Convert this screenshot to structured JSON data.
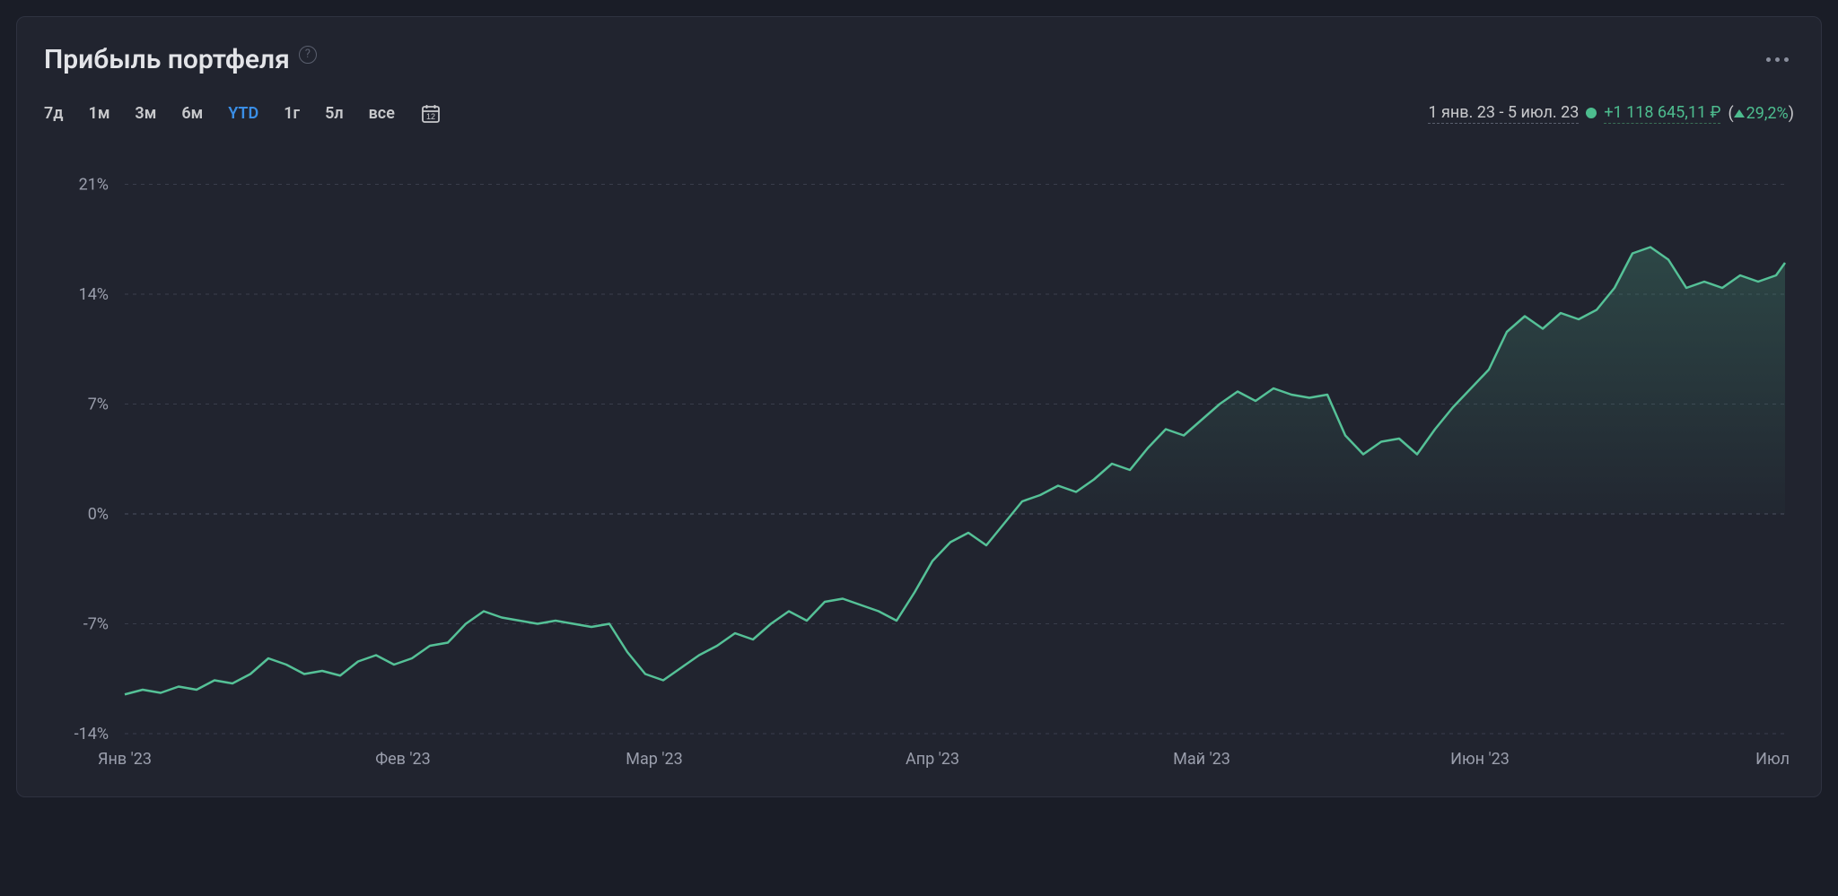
{
  "title": "Прибыль портфеля",
  "help_tooltip": "?",
  "ranges": [
    {
      "label": "7д",
      "active": false
    },
    {
      "label": "1м",
      "active": false
    },
    {
      "label": "3м",
      "active": false
    },
    {
      "label": "6м",
      "active": false
    },
    {
      "label": "YTD",
      "active": true
    },
    {
      "label": "1г",
      "active": false
    },
    {
      "label": "5л",
      "active": false
    },
    {
      "label": "все",
      "active": false
    }
  ],
  "calendar_day_label": "12",
  "summary": {
    "date_range": "1 янв. 23 - 5 июл. 23",
    "dot_color": "#4dbd8f",
    "value_text": "+1 118 645,11 ₽",
    "pct_text": "29,2%",
    "paren_open": "(",
    "paren_close": ")"
  },
  "colors": {
    "card_bg": "#21242f",
    "page_bg": "#1a1d27",
    "text_primary": "#e3e4e8",
    "text_secondary": "#c8c9cc",
    "text_muted": "#9a9eac",
    "accent_blue": "#3a8ee6",
    "positive": "#4dbd8f",
    "grid": "#3a3e4c",
    "grid_zero": "#4c5060",
    "line": "#55c197",
    "area_top": "rgba(85,193,151,0.22)",
    "area_bottom": "rgba(85,193,151,0.02)"
  },
  "chart": {
    "type": "area",
    "y_axis": {
      "min": -14,
      "max": 22,
      "ticks": [
        -14,
        -7,
        0,
        7,
        14,
        21
      ],
      "tick_labels": [
        "-14%",
        "-7%",
        "0%",
        "7%",
        "14%",
        "21%"
      ],
      "label_fontsize": 18
    },
    "x_axis": {
      "ticks": [
        0,
        31,
        59,
        90,
        120,
        151,
        181
      ],
      "tick_labels": [
        "Янв '23",
        "Фев '23",
        "Мар '23",
        "Апр '23",
        "Май '23",
        "Июн '23",
        "Июл '23"
      ],
      "min": 0,
      "max": 185,
      "label_fontsize": 18
    },
    "line_width": 2.5,
    "line_color": "#55c197",
    "fill_gradient": [
      "rgba(85,193,151,0.22)",
      "rgba(85,193,151,0.02)"
    ],
    "grid_color": "#3a3e4c",
    "data": [
      [
        0,
        -11.5
      ],
      [
        2,
        -11.2
      ],
      [
        4,
        -11.4
      ],
      [
        6,
        -11.0
      ],
      [
        8,
        -11.2
      ],
      [
        10,
        -10.6
      ],
      [
        12,
        -10.8
      ],
      [
        14,
        -10.2
      ],
      [
        16,
        -9.2
      ],
      [
        18,
        -9.6
      ],
      [
        20,
        -10.2
      ],
      [
        22,
        -10.0
      ],
      [
        24,
        -10.3
      ],
      [
        26,
        -9.4
      ],
      [
        28,
        -9.0
      ],
      [
        30,
        -9.6
      ],
      [
        32,
        -9.2
      ],
      [
        34,
        -8.4
      ],
      [
        36,
        -8.2
      ],
      [
        38,
        -7.0
      ],
      [
        40,
        -6.2
      ],
      [
        42,
        -6.6
      ],
      [
        44,
        -6.8
      ],
      [
        46,
        -7.0
      ],
      [
        48,
        -6.8
      ],
      [
        50,
        -7.0
      ],
      [
        52,
        -7.2
      ],
      [
        54,
        -7.0
      ],
      [
        56,
        -8.8
      ],
      [
        58,
        -10.2
      ],
      [
        60,
        -10.6
      ],
      [
        62,
        -9.8
      ],
      [
        64,
        -9.0
      ],
      [
        66,
        -8.4
      ],
      [
        68,
        -7.6
      ],
      [
        70,
        -8.0
      ],
      [
        72,
        -7.0
      ],
      [
        74,
        -6.2
      ],
      [
        76,
        -6.8
      ],
      [
        78,
        -5.6
      ],
      [
        80,
        -5.4
      ],
      [
        82,
        -5.8
      ],
      [
        84,
        -6.2
      ],
      [
        86,
        -6.8
      ],
      [
        88,
        -5.0
      ],
      [
        90,
        -3.0
      ],
      [
        92,
        -1.8
      ],
      [
        94,
        -1.2
      ],
      [
        96,
        -2.0
      ],
      [
        98,
        -0.6
      ],
      [
        100,
        0.8
      ],
      [
        102,
        1.2
      ],
      [
        104,
        1.8
      ],
      [
        106,
        1.4
      ],
      [
        108,
        2.2
      ],
      [
        110,
        3.2
      ],
      [
        112,
        2.8
      ],
      [
        114,
        4.2
      ],
      [
        116,
        5.4
      ],
      [
        118,
        5.0
      ],
      [
        120,
        6.0
      ],
      [
        122,
        7.0
      ],
      [
        124,
        7.8
      ],
      [
        126,
        7.2
      ],
      [
        128,
        8.0
      ],
      [
        130,
        7.6
      ],
      [
        132,
        7.4
      ],
      [
        134,
        7.6
      ],
      [
        136,
        5.0
      ],
      [
        138,
        3.8
      ],
      [
        140,
        4.6
      ],
      [
        142,
        4.8
      ],
      [
        144,
        3.8
      ],
      [
        146,
        5.4
      ],
      [
        148,
        6.8
      ],
      [
        150,
        8.0
      ],
      [
        152,
        9.2
      ],
      [
        154,
        11.6
      ],
      [
        156,
        12.6
      ],
      [
        158,
        11.8
      ],
      [
        160,
        12.8
      ],
      [
        162,
        12.4
      ],
      [
        164,
        13.0
      ],
      [
        166,
        14.4
      ],
      [
        168,
        16.6
      ],
      [
        170,
        17.0
      ],
      [
        172,
        16.2
      ],
      [
        174,
        14.4
      ],
      [
        176,
        14.8
      ],
      [
        178,
        14.4
      ],
      [
        180,
        15.2
      ],
      [
        182,
        14.8
      ],
      [
        184,
        15.2
      ],
      [
        185,
        16.0
      ]
    ]
  }
}
